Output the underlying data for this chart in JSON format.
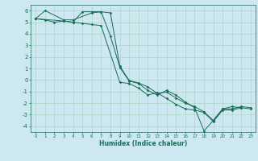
{
  "xlabel": "Humidex (Indice chaleur)",
  "bg_color": "#cde8f0",
  "grid_color": "#a8cfc0",
  "line_color": "#1a6b5a",
  "xlim": [
    -0.5,
    23.5
  ],
  "ylim": [
    -4.5,
    6.5
  ],
  "xticks": [
    0,
    1,
    2,
    3,
    4,
    5,
    6,
    7,
    8,
    9,
    10,
    11,
    12,
    13,
    14,
    15,
    16,
    17,
    18,
    19,
    20,
    21,
    22,
    23
  ],
  "yticks": [
    -4,
    -3,
    -2,
    -1,
    0,
    1,
    2,
    3,
    4,
    5,
    6
  ],
  "series": [
    {
      "x": [
        0,
        1,
        3,
        4,
        6,
        7,
        8,
        9,
        10,
        11,
        12,
        13,
        14,
        15,
        16,
        17,
        18,
        19,
        20,
        21,
        22
      ],
      "y": [
        5.3,
        6.0,
        5.2,
        5.2,
        5.8,
        5.9,
        3.8,
        1.1,
        -0.1,
        -0.3,
        -0.9,
        -1.3,
        -0.9,
        -1.3,
        -1.9,
        -2.4,
        -4.4,
        -3.5,
        -2.5,
        -2.3,
        -2.4
      ]
    },
    {
      "x": [
        0,
        1,
        2,
        3,
        4,
        5,
        6,
        7,
        9,
        10,
        11,
        12,
        13,
        14,
        15,
        16,
        17,
        18,
        19,
        20,
        21,
        22,
        23
      ],
      "y": [
        5.3,
        5.2,
        5.0,
        5.1,
        5.0,
        4.9,
        4.8,
        4.7,
        -0.2,
        -0.3,
        -0.7,
        -1.3,
        -1.1,
        -1.6,
        -2.1,
        -2.5,
        -2.6,
        -2.8,
        -3.6,
        -2.6,
        -2.6,
        -2.4,
        -2.5
      ]
    },
    {
      "x": [
        0,
        3,
        4,
        5,
        6,
        7,
        8,
        9,
        10,
        11,
        12,
        13,
        14,
        15,
        16,
        17,
        18,
        19,
        20,
        21,
        22,
        23
      ],
      "y": [
        5.3,
        5.1,
        5.0,
        5.9,
        5.9,
        5.9,
        5.8,
        1.2,
        -0.05,
        -0.25,
        -0.6,
        -1.15,
        -1.05,
        -1.55,
        -2.0,
        -2.3,
        -2.75,
        -3.5,
        -2.5,
        -2.5,
        -2.3,
        -2.4
      ]
    }
  ]
}
